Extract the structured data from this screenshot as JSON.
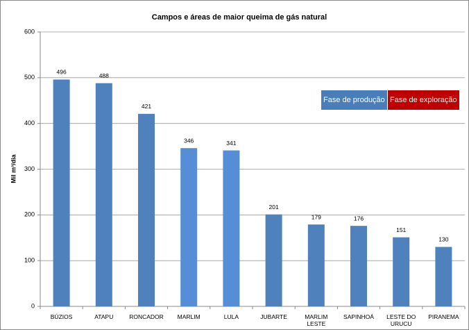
{
  "chart_data": {
    "type": "bar",
    "title": "Campos e áreas de maior queima de gás natural",
    "y_label": "Mil m³/dia",
    "categories": [
      "BÚZIOS",
      "ATAPU",
      "RONCADOR",
      "MARLIM",
      "LULA",
      "JUBARTE",
      "MARLIM LESTE",
      "SAPINHOÁ",
      "LESTE DO URUCU",
      "PIRANEMA"
    ],
    "values": [
      496,
      488,
      421,
      346,
      341,
      201,
      179,
      176,
      151,
      130
    ],
    "colors": [
      "#4f81bd",
      "#4f81bd",
      "#4f81bd",
      "#558ed5",
      "#558ed5",
      "#4f81bd",
      "#4f81bd",
      "#4f81bd",
      "#4f81bd",
      "#4f81bd"
    ],
    "legend": [
      {
        "name": "Fase de produção",
        "color": "#4a7ebb"
      },
      {
        "name": "Fase de exploração",
        "color": "#c00000"
      }
    ],
    "ylim": [
      0,
      600
    ],
    "yticks": [
      0,
      100,
      200,
      300,
      400,
      500,
      600
    ],
    "grid": true
  }
}
